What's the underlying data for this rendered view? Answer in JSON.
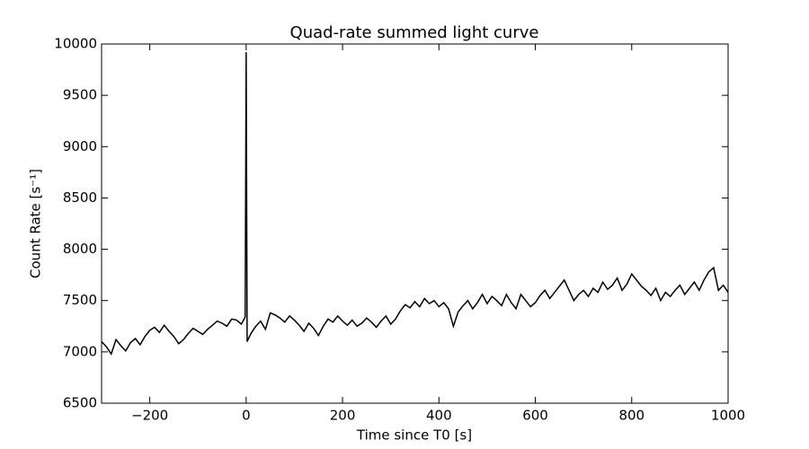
{
  "chart_data": {
    "type": "line",
    "title": "Quad-rate summed light curve",
    "x_label": "Time since T0 [s]",
    "y_label": "Count Rate [s⁻¹]",
    "x": [
      -300,
      -290,
      -280,
      -270,
      -260,
      -250,
      -240,
      -230,
      -220,
      -210,
      -200,
      -190,
      -180,
      -170,
      -160,
      -150,
      -140,
      -130,
      -120,
      -110,
      -100,
      -90,
      -80,
      -70,
      -60,
      -50,
      -40,
      -30,
      -20,
      -10,
      -2,
      0,
      2,
      10,
      20,
      30,
      40,
      50,
      60,
      70,
      80,
      90,
      100,
      110,
      120,
      130,
      140,
      150,
      160,
      170,
      180,
      190,
      200,
      210,
      220,
      230,
      240,
      250,
      260,
      270,
      280,
      290,
      300,
      310,
      320,
      330,
      340,
      350,
      360,
      370,
      380,
      390,
      400,
      410,
      420,
      430,
      440,
      450,
      460,
      470,
      480,
      490,
      500,
      510,
      520,
      530,
      540,
      550,
      560,
      570,
      580,
      590,
      600,
      610,
      620,
      630,
      640,
      650,
      660,
      670,
      680,
      690,
      700,
      710,
      720,
      730,
      740,
      750,
      760,
      770,
      780,
      790,
      800,
      810,
      820,
      830,
      840,
      850,
      860,
      870,
      880,
      890,
      900,
      910,
      920,
      930,
      940,
      950,
      960,
      970,
      980,
      990,
      1000
    ],
    "series": [
      {
        "name": "Quad-rate",
        "color": "#000000",
        "values": [
          7100,
          7050,
          6980,
          7120,
          7060,
          7010,
          7090,
          7130,
          7070,
          7150,
          7210,
          7240,
          7190,
          7260,
          7200,
          7150,
          7080,
          7120,
          7180,
          7230,
          7200,
          7170,
          7220,
          7260,
          7300,
          7280,
          7250,
          7320,
          7310,
          7270,
          7340,
          9920,
          7100,
          7180,
          7250,
          7300,
          7220,
          7380,
          7360,
          7330,
          7290,
          7350,
          7310,
          7260,
          7200,
          7280,
          7230,
          7160,
          7250,
          7320,
          7290,
          7350,
          7300,
          7260,
          7310,
          7250,
          7280,
          7330,
          7290,
          7240,
          7300,
          7350,
          7270,
          7320,
          7400,
          7460,
          7430,
          7490,
          7440,
          7520,
          7470,
          7500,
          7440,
          7480,
          7420,
          7250,
          7390,
          7450,
          7500,
          7420,
          7480,
          7560,
          7470,
          7540,
          7500,
          7450,
          7560,
          7480,
          7420,
          7560,
          7500,
          7440,
          7480,
          7550,
          7600,
          7520,
          7580,
          7640,
          7700,
          7600,
          7500,
          7560,
          7600,
          7540,
          7620,
          7580,
          7680,
          7610,
          7650,
          7720,
          7600,
          7660,
          7760,
          7700,
          7640,
          7600,
          7550,
          7620,
          7500,
          7580,
          7540,
          7600,
          7650,
          7560,
          7620,
          7680,
          7600,
          7700,
          7780,
          7820,
          7600,
          7650,
          7580
        ]
      }
    ],
    "xlim": [
      -300,
      1000
    ],
    "xticks": [
      {
        "value": -200,
        "label": "−200"
      },
      0,
      200,
      400,
      600,
      800,
      1000
    ],
    "ylim": [
      6500,
      10000
    ],
    "yticks": [
      6500,
      7000,
      7500,
      8000,
      8500,
      9000,
      9500,
      10000
    ],
    "grid": false
  }
}
